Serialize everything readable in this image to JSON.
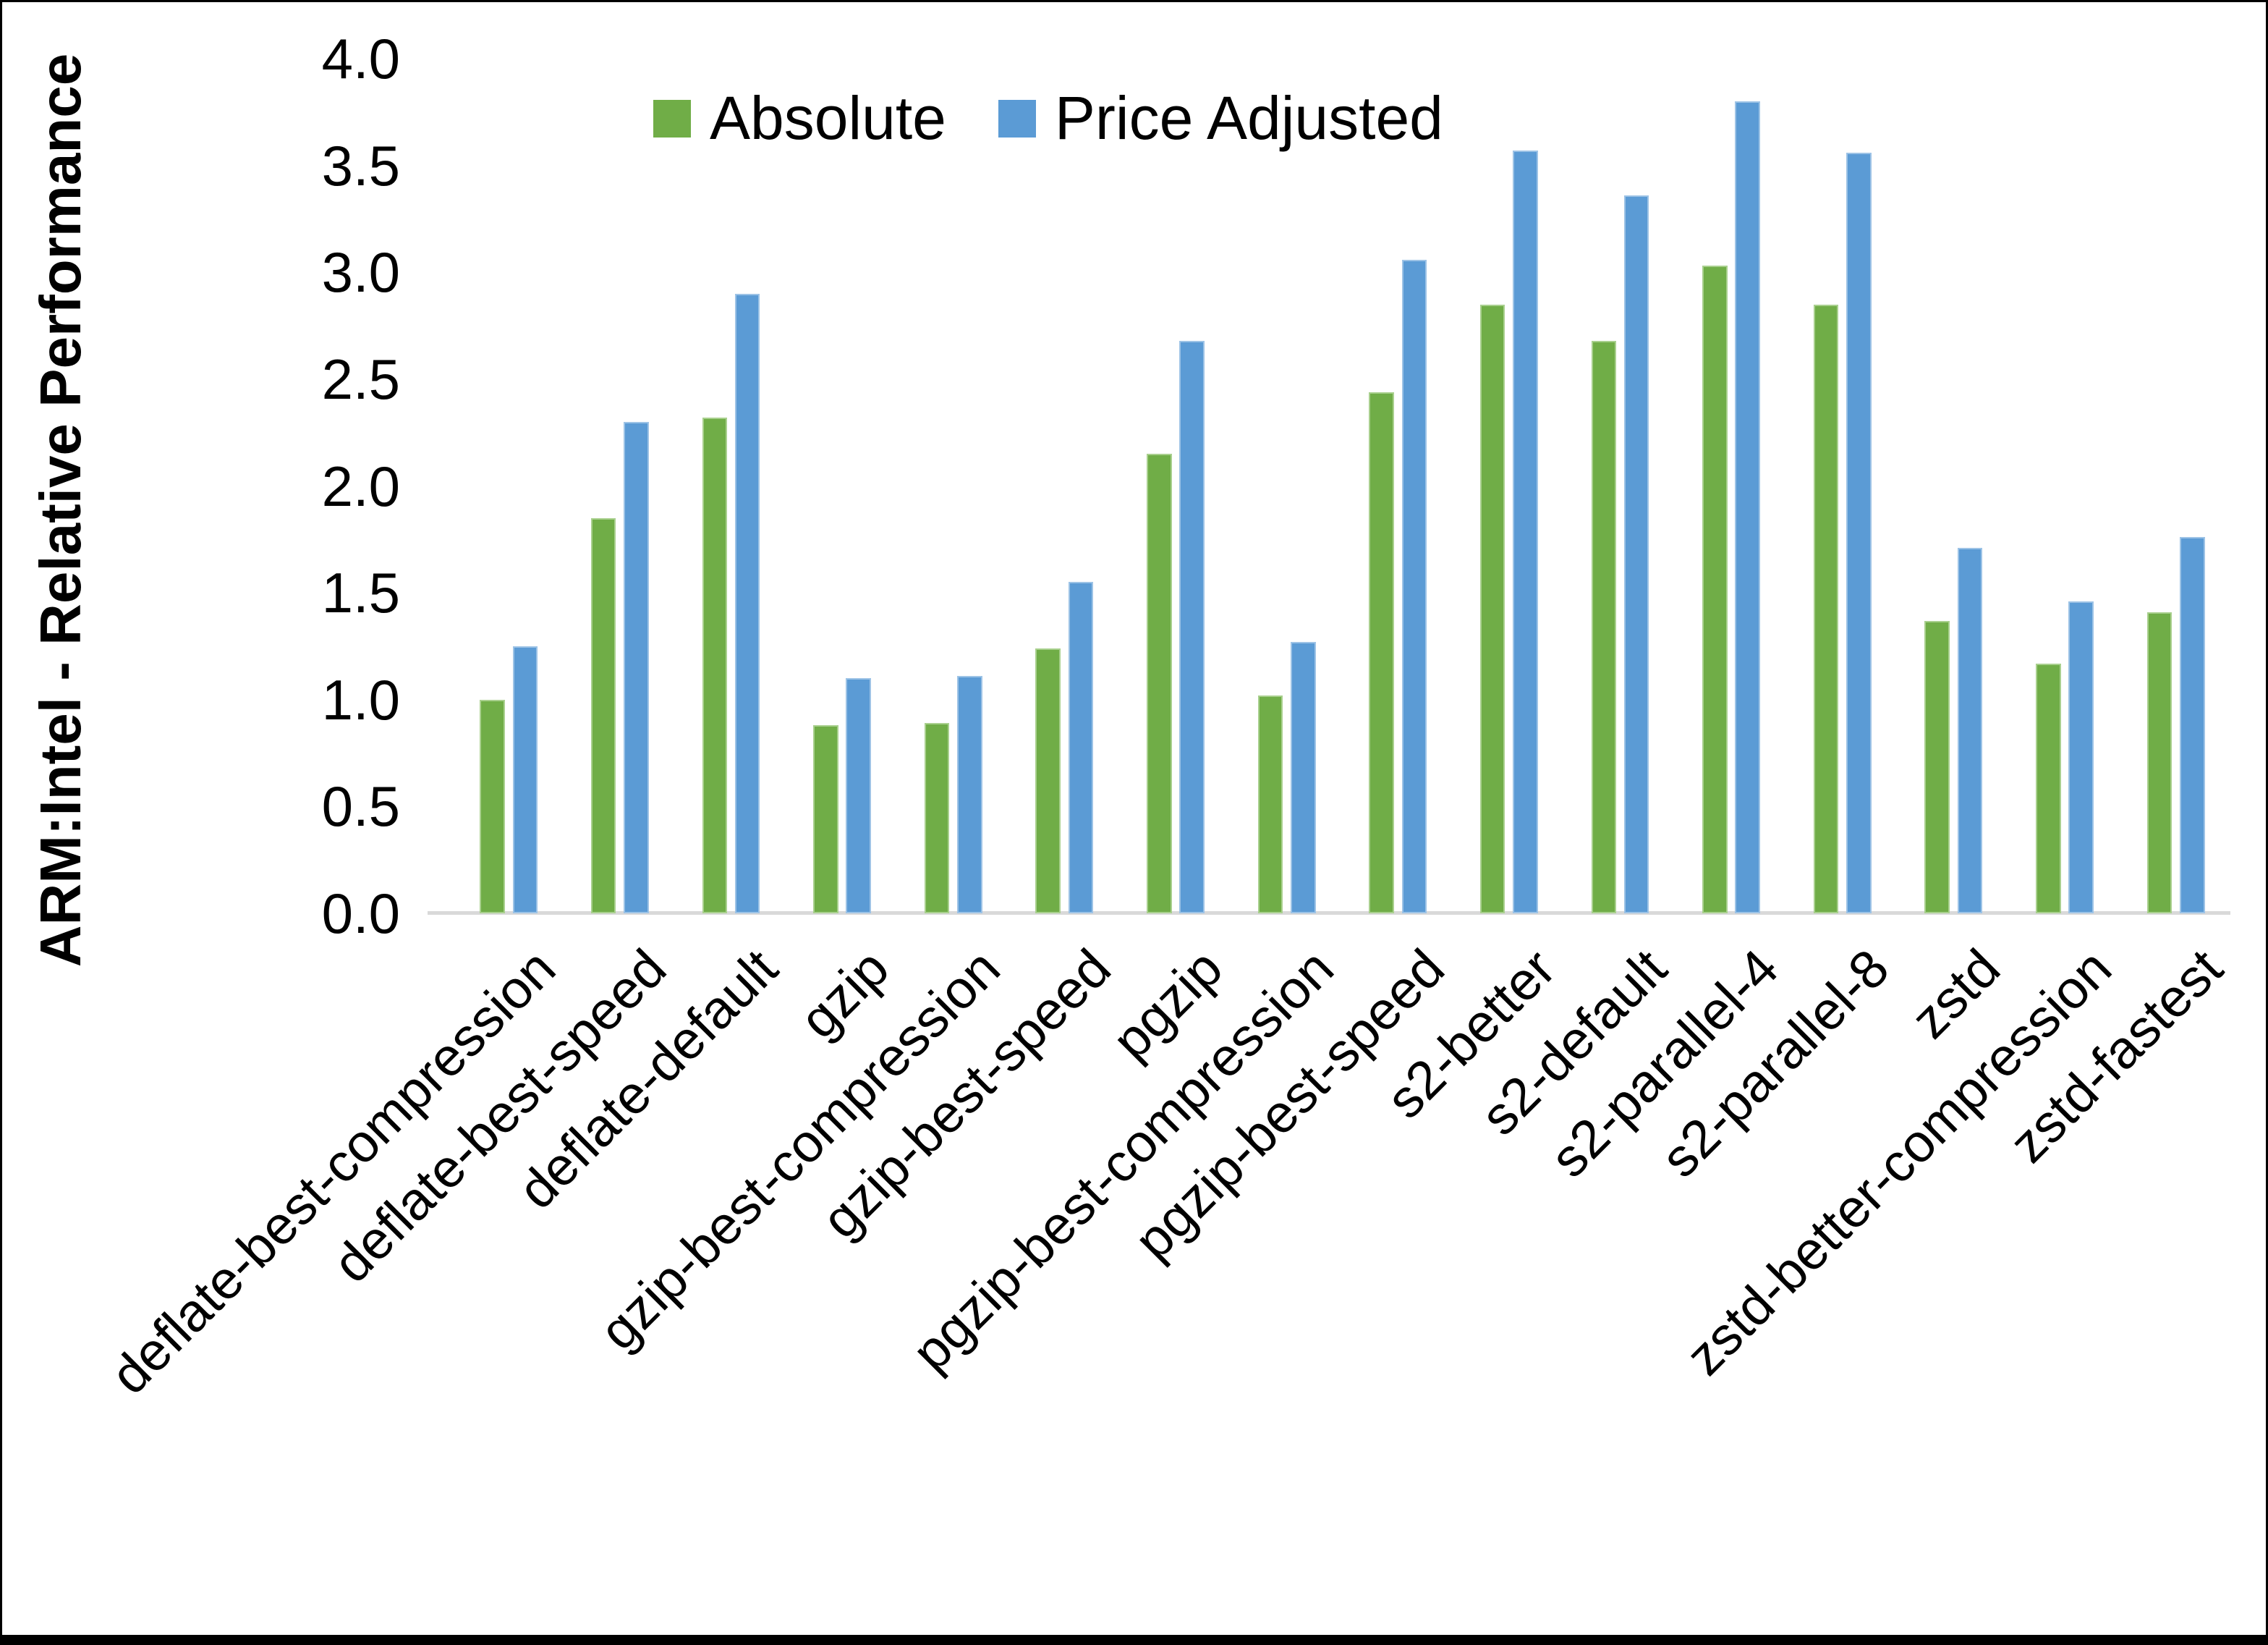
{
  "chart_data": {
    "type": "bar",
    "title": "",
    "ylabel": "ARM:Intel - Relative Performance",
    "xlabel": "",
    "ylim": [
      0.0,
      4.0
    ],
    "ytick_step": 0.5,
    "ytick_labels": [
      "0.0",
      "0.5",
      "1.0",
      "1.5",
      "2.0",
      "2.5",
      "3.0",
      "3.5",
      "4.0"
    ],
    "grid": false,
    "legend_position": "top-center",
    "axis_line_color": "#d9d9d9",
    "categories": [
      "deflate-best-compression",
      "deflate-best-speed",
      "deflate-default",
      "gzip",
      "gzip-best-compression",
      "gzip-best-speed",
      "pgzip",
      "pgzip-best-compression",
      "pgzip-best-speed",
      "s2-better",
      "s2-default",
      "s2-parallel-4",
      "s2-parallel-8",
      "zstd",
      "zstd-better-compression",
      "zstd-fastest"
    ],
    "series": [
      {
        "name": "Absolute",
        "color": "#70AD47",
        "edge_color": "#A9D08E",
        "values": [
          1.0,
          1.85,
          2.32,
          0.88,
          0.89,
          1.24,
          2.15,
          1.02,
          2.44,
          2.85,
          2.68,
          3.03,
          2.85,
          1.37,
          1.17,
          1.41
        ]
      },
      {
        "name": "Price Adjusted",
        "color": "#5B9BD5",
        "edge_color": "#9DC3E6",
        "values": [
          1.25,
          2.3,
          2.9,
          1.1,
          1.11,
          1.55,
          2.68,
          1.27,
          3.06,
          3.57,
          3.36,
          3.8,
          3.56,
          1.71,
          1.46,
          1.76
        ]
      }
    ]
  }
}
